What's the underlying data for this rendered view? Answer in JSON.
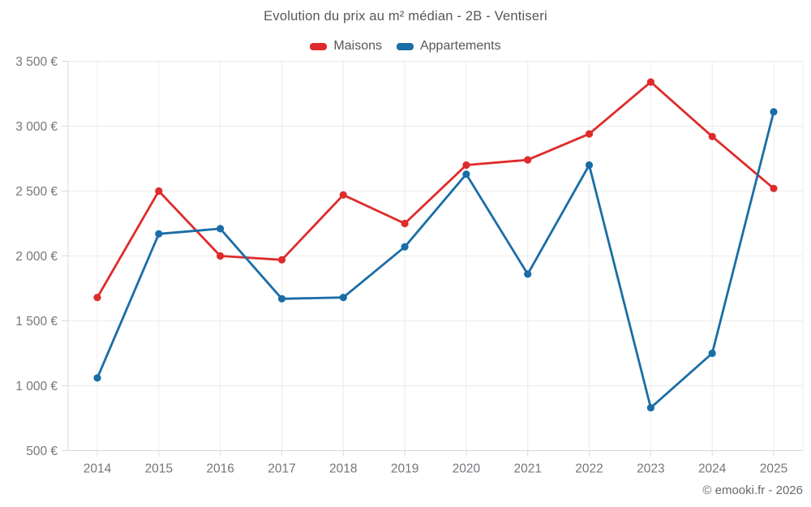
{
  "title": "Evolution du prix au m² médian - 2B - Ventiseri",
  "legend": {
    "items": [
      {
        "label": "Maisons",
        "color": "#df2b2b"
      },
      {
        "label": "Appartements",
        "color": "#1a6da6"
      }
    ]
  },
  "footer": {
    "text": "© emooki.fr - 2026"
  },
  "colors": {
    "red": "#df2b2b",
    "blue": "#1a6da6",
    "grid": "#ececec",
    "axis": "#d9d9d9",
    "tick_text": "#73777b",
    "title_text": "#54575b"
  },
  "chart_data": {
    "type": "line",
    "title": "Evolution du prix au m² médian - 2B - Ventiseri",
    "xlabel": "",
    "ylabel": "",
    "x": [
      2014,
      2015,
      2016,
      2017,
      2018,
      2019,
      2020,
      2021,
      2022,
      2023,
      2024,
      2025
    ],
    "x_tick_labels": [
      "2014",
      "2015",
      "2016",
      "2017",
      "2018",
      "2019",
      "2020",
      "2021",
      "2022",
      "2023",
      "2024",
      "2025"
    ],
    "series": [
      {
        "name": "Maisons",
        "color": "#df2b2b",
        "values": [
          1680,
          2500,
          2000,
          1970,
          2470,
          2250,
          2700,
          2740,
          2940,
          3340,
          2920,
          2520
        ]
      },
      {
        "name": "Appartements",
        "color": "#1a6da6",
        "values": [
          1060,
          2170,
          2210,
          1670,
          1680,
          2070,
          2630,
          1860,
          2700,
          830,
          1250,
          3110
        ]
      }
    ],
    "ylim": [
      500,
      3500
    ],
    "y_tick_values": [
      500,
      1000,
      1500,
      2000,
      2500,
      3000,
      3500
    ],
    "y_tick_labels": [
      "500 €",
      "1 000 €",
      "1 500 €",
      "2 000 €",
      "2 500 €",
      "3 000 €",
      "3 500 €"
    ],
    "grid": true,
    "legend_position": "top",
    "marker": "circle"
  }
}
